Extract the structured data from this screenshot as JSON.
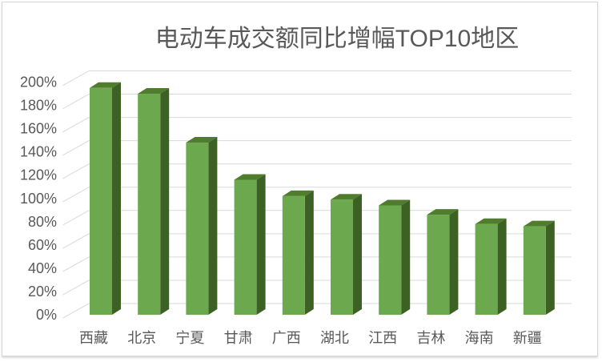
{
  "chart_data": {
    "type": "bar",
    "style": "3d-column",
    "title": "电动车成交额同比增幅TOP10地区",
    "categories": [
      "西藏",
      "北京",
      "宁夏",
      "甘肃",
      "广西",
      "湖北",
      "江西",
      "吉林",
      "海南",
      "新疆"
    ],
    "values": [
      195,
      190,
      148,
      116,
      102,
      99,
      94,
      86,
      78,
      76
    ],
    "unit": "%",
    "xlabel": "",
    "ylabel": "",
    "ylim": [
      0,
      200
    ],
    "ytick_step": 20,
    "ytick_labels": [
      "0%",
      "20%",
      "40%",
      "60%",
      "80%",
      "100%",
      "120%",
      "140%",
      "160%",
      "180%",
      "200%"
    ],
    "grid": true,
    "legend": "none",
    "colors": {
      "bar_front": "#6CA84D",
      "bar_top": "#507C2E",
      "bar_side": "#3D6125",
      "gridline": "#D9D9D9",
      "text": "#595959",
      "frame_border": "#D7D7D7",
      "background": "#FFFFFF"
    }
  }
}
